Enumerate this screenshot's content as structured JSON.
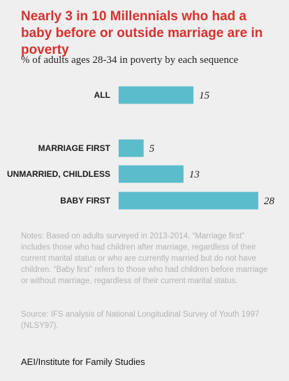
{
  "colors": {
    "title": "#d6322e",
    "bar": "#5bbccc",
    "notes": "#b3b3b3",
    "background": "#efefef"
  },
  "chart_data": {
    "type": "bar",
    "orientation": "horizontal",
    "title": "Nearly 3 in 10 Millennials who had a baby before or outside marriage are in poverty",
    "subtitle": "% of adults ages 28-34 in poverty by each sequence",
    "categories": [
      "ALL",
      "MARRIAGE FIRST",
      "UNMARRIED, CHILDLESS",
      "BABY FIRST"
    ],
    "values": [
      15,
      5,
      13,
      28
    ],
    "xlim": [
      0,
      28
    ],
    "grid": false,
    "legend": "none"
  },
  "notes": "Notes: Based on adults surveyed in 2013-2014. “Marriage first” includes those who had children after marriage, regardless of their current marital status or who are currently married but do not have children. “Baby first” refers to those who had children before marriage or without marriage, regardless of their current marital status.",
  "source": "Source: IFS analysis of National Longitudinal Survey of Youth 1997 (NLSY97).",
  "footer": "AEI/Institute for Family Studies"
}
